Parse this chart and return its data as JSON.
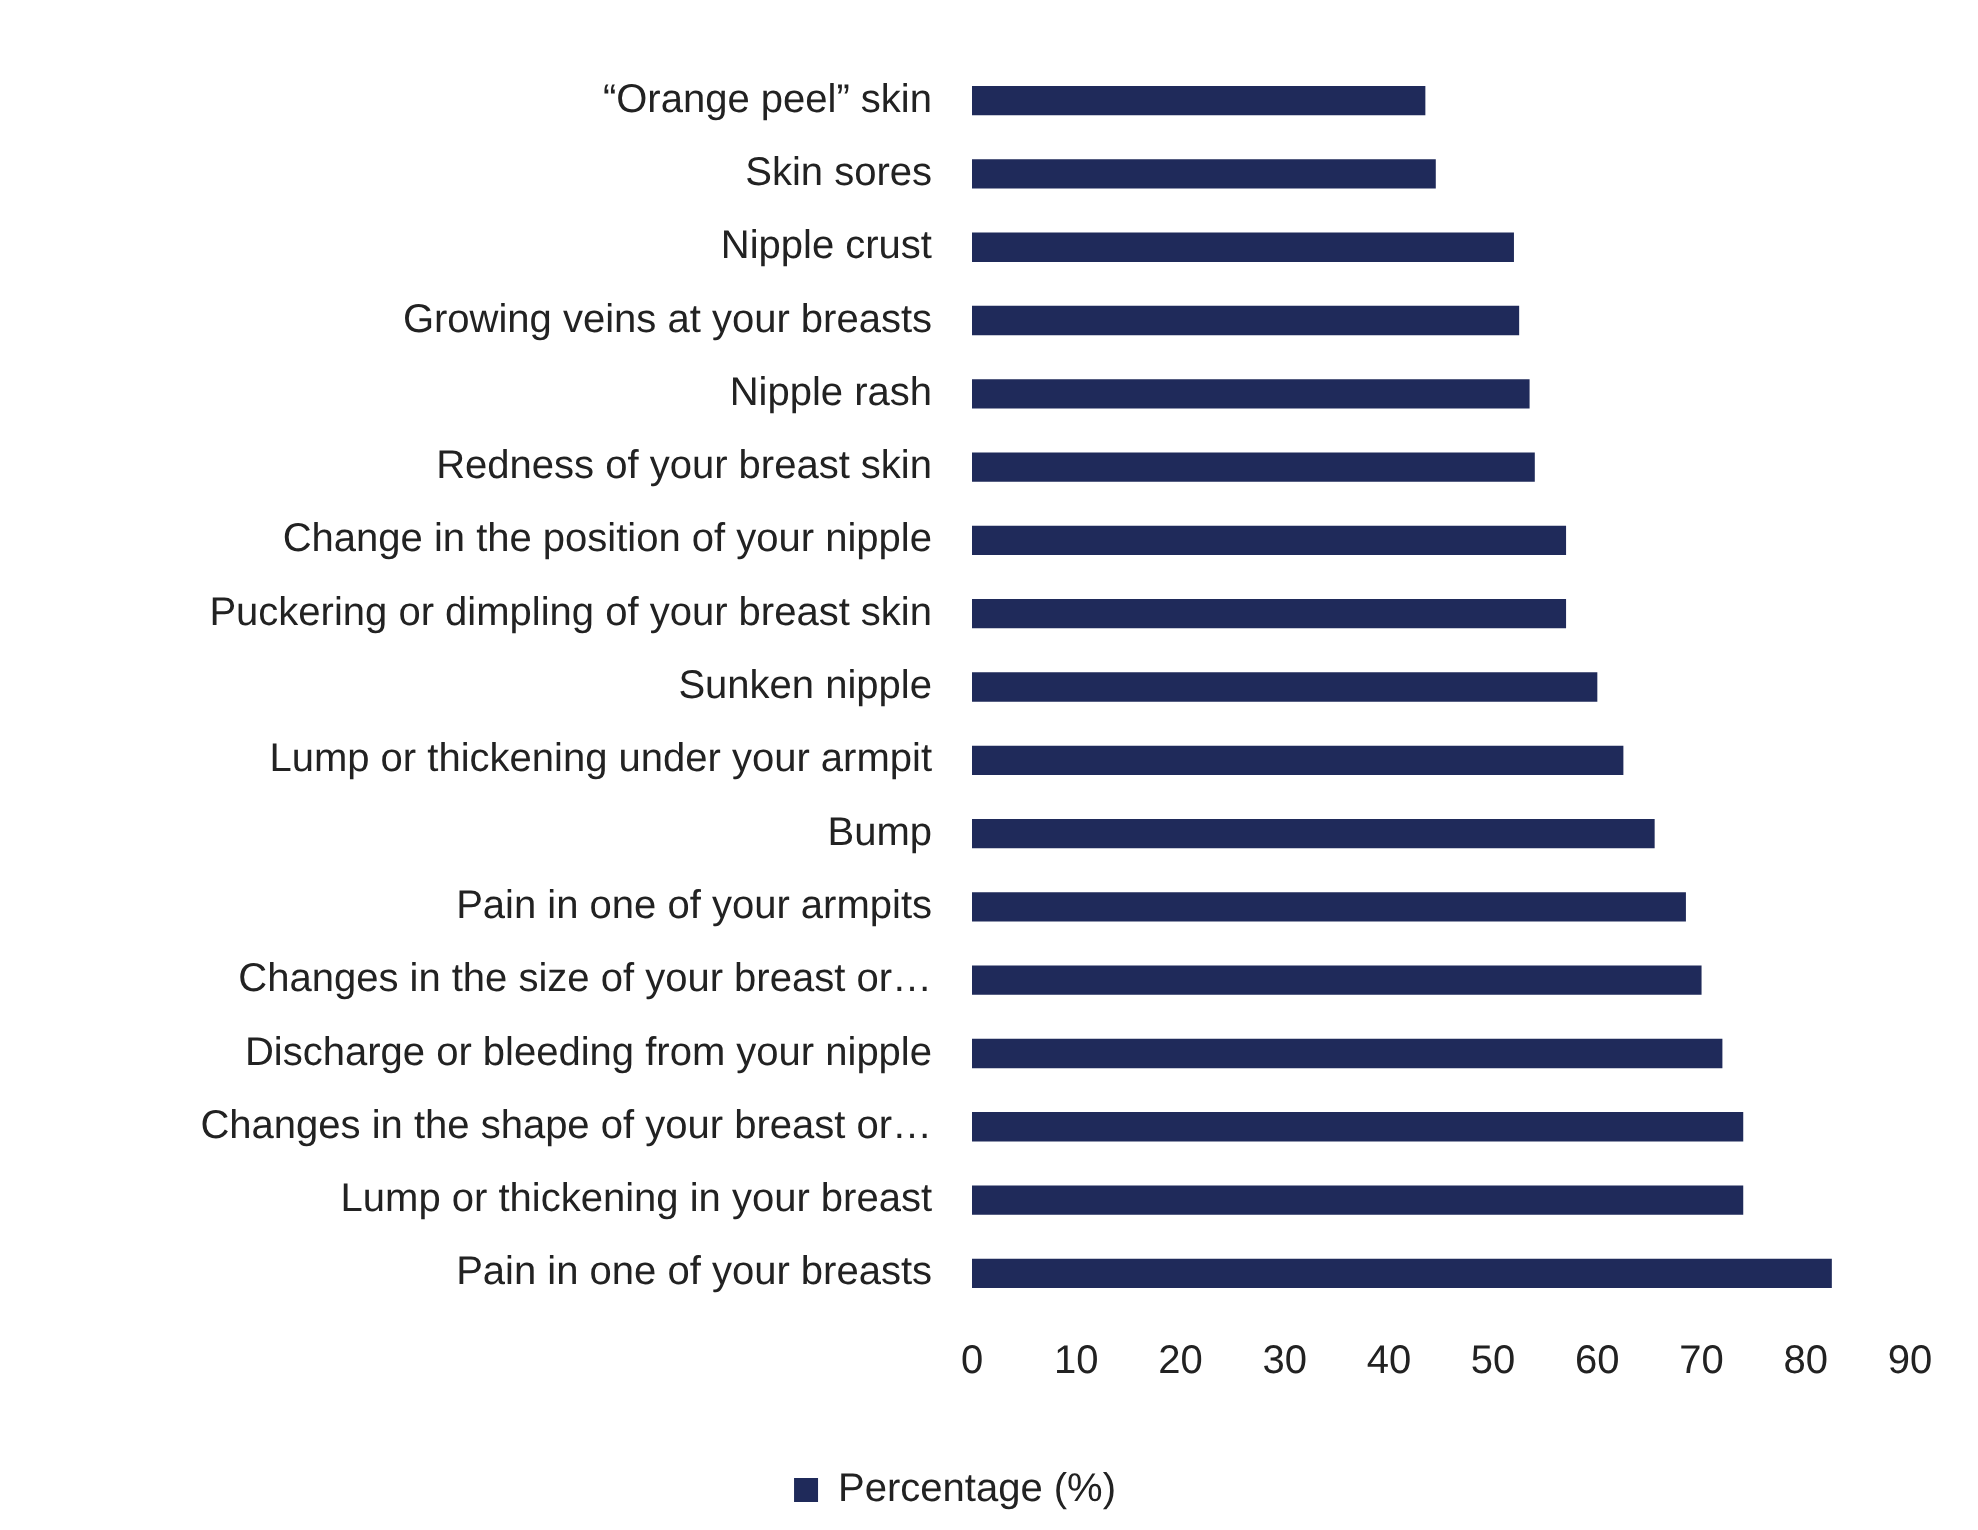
{
  "chart_data": {
    "type": "bar",
    "orientation": "horizontal",
    "categories": [
      "“Orange peel” skin",
      "Skin sores",
      "Nipple crust",
      "Growing veins at your breasts",
      "Nipple rash",
      "Redness of your breast skin",
      "Change in the position of your nipple",
      "Puckering or dimpling of your breast skin",
      "Sunken nipple",
      "Lump or thickening under your armpit",
      "Bump",
      "Pain in one of your armpits",
      "Changes in the size of your breast or…",
      "Discharge or bleeding from your nipple",
      "Changes in the shape of your breast or…",
      "Lump or thickening in your breast",
      "Pain in one of your breasts"
    ],
    "series": [
      {
        "name": "Percentage (%)",
        "color": "#1f2a5a",
        "values": [
          43.5,
          44.5,
          52,
          52.5,
          53.5,
          54,
          57,
          57,
          60,
          62.5,
          65.5,
          68.5,
          70,
          72,
          74,
          74,
          82.5
        ]
      }
    ],
    "xlim": [
      0,
      90
    ],
    "xticks": [
      0,
      10,
      20,
      30,
      40,
      50,
      60,
      70,
      80,
      90
    ],
    "grid": false,
    "legend": "bottom"
  }
}
